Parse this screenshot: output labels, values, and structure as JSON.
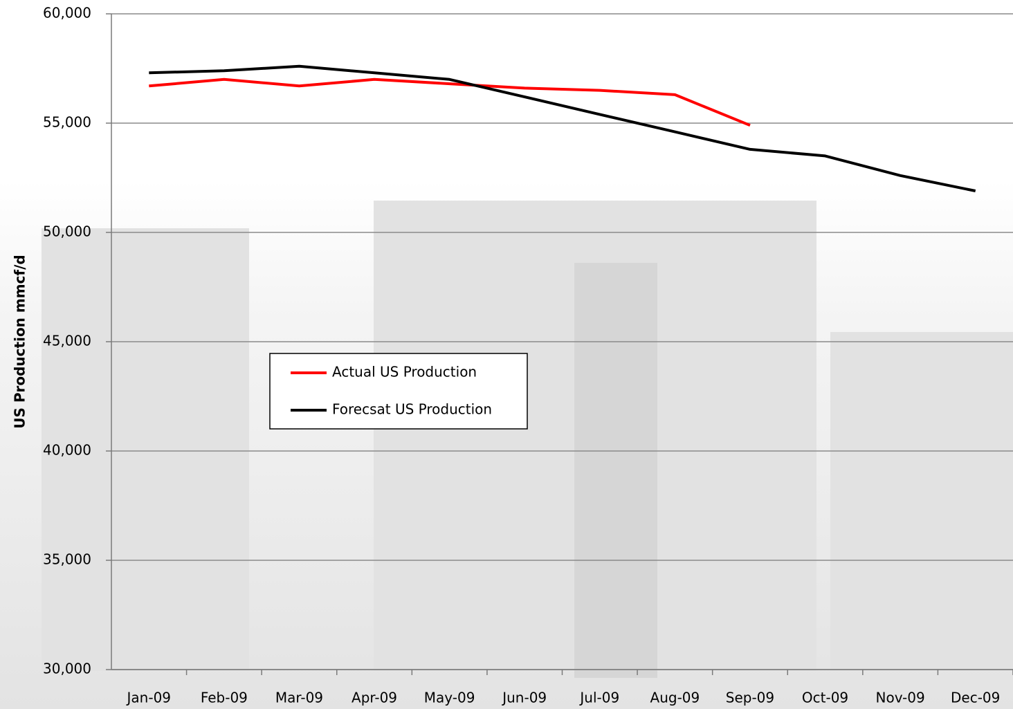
{
  "chart_data": {
    "type": "line",
    "y_label": "US Production mmcf/d",
    "categories": [
      "Jan-09",
      "Feb-09",
      "Mar-09",
      "Apr-09",
      "May-09",
      "Jun-09",
      "Jul-09",
      "Aug-09",
      "Sep-09",
      "Oct-09",
      "Nov-09",
      "Dec-09"
    ],
    "series": [
      {
        "name": "Actual US Production",
        "color": "#ff0000",
        "values": [
          56700,
          57000,
          56700,
          57000,
          56800,
          56600,
          56500,
          56300,
          54900,
          null,
          null,
          null
        ]
      },
      {
        "name": "Forecsat US Production",
        "color": "#000000",
        "values": [
          57300,
          57400,
          57600,
          57300,
          57000,
          56200,
          55400,
          54600,
          53800,
          53500,
          52600,
          51900
        ]
      }
    ],
    "ylim": [
      30000,
      60000
    ],
    "yticks": [
      {
        "value": 30000,
        "label": "30,000"
      },
      {
        "value": 35000,
        "label": "35,000"
      },
      {
        "value": 40000,
        "label": "40,000"
      },
      {
        "value": 45000,
        "label": "45,000"
      },
      {
        "value": 50000,
        "label": "50,000"
      },
      {
        "value": 55000,
        "label": "55,000"
      },
      {
        "value": 60000,
        "label": "60,000"
      }
    ],
    "grid": true
  }
}
